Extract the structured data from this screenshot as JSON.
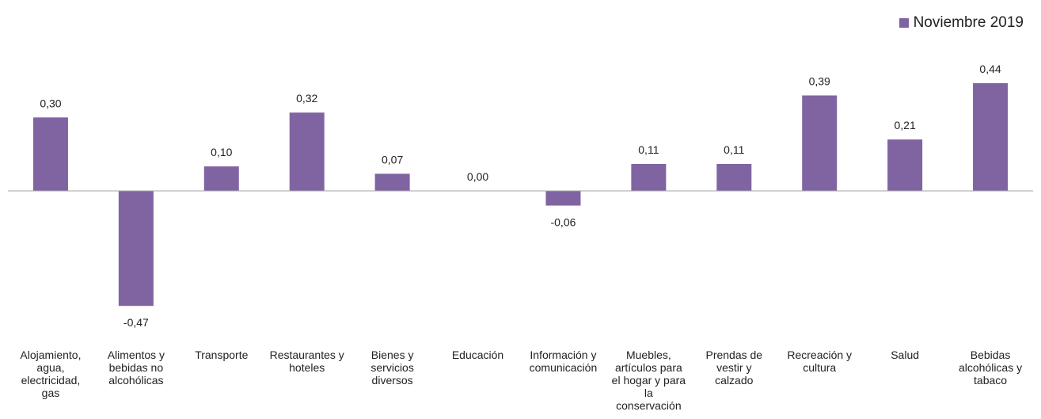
{
  "colors": {
    "bar": "#8064A2",
    "axis": "#A6A6A6",
    "text": "#222222"
  },
  "legend": {
    "position": "top-right",
    "label": "Noviembre 2019"
  },
  "chart_data": {
    "type": "bar",
    "title": "",
    "xlabel": "",
    "ylabel": "",
    "grid": false,
    "categories": [
      "Alojamiento, agua, electricidad, gas",
      "Alimentos y bebidas no alcohólicas",
      "Transporte",
      "Restaurantes y hoteles",
      "Bienes y servicios diversos",
      "Educación",
      "Información y comunicación",
      "Muebles, artículos para el hogar y para la conservación",
      "Prendas de vestir y calzado",
      "Recreación y cultura",
      "Salud",
      "Bebidas alcohólicas y tabaco"
    ],
    "category_lines": [
      [
        "Alojamiento,",
        "agua,",
        "electricidad,",
        "gas"
      ],
      [
        "Alimentos y",
        "bebidas no",
        "alcohólicas"
      ],
      [
        "Transporte"
      ],
      [
        "Restaurantes y",
        "hoteles"
      ],
      [
        "Bienes y",
        "servicios",
        "diversos"
      ],
      [
        "Educación"
      ],
      [
        "Información y",
        "comunicación"
      ],
      [
        "Muebles,",
        "artículos para",
        "el hogar y para",
        "la",
        "conservación"
      ],
      [
        "Prendas de",
        "vestir y",
        "calzado"
      ],
      [
        "Recreación y",
        "cultura"
      ],
      [
        "Salud"
      ],
      [
        "Bebidas",
        "alcohólicas y",
        "tabaco"
      ]
    ],
    "series": [
      {
        "name": "Noviembre 2019",
        "values": [
          0.3,
          -0.47,
          0.1,
          0.32,
          0.07,
          0.0,
          -0.06,
          0.11,
          0.11,
          0.39,
          0.21,
          0.44
        ],
        "labels": [
          "0,30",
          "-0,47",
          "0,10",
          "0,32",
          "0,07",
          "0,00",
          "-0,06",
          "0,11",
          "0,11",
          "0,39",
          "0,21",
          "0,44"
        ]
      }
    ],
    "ylim": [
      -0.5,
      0.5
    ]
  }
}
